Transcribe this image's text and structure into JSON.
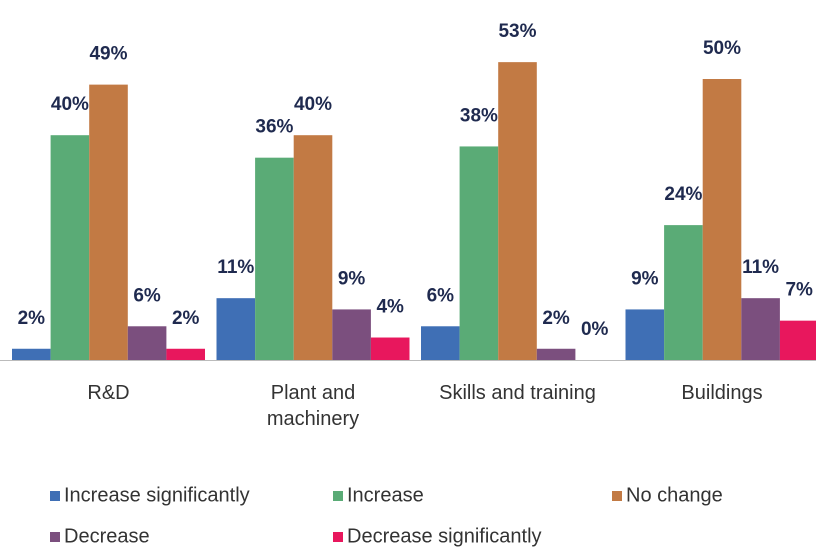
{
  "chart_data": {
    "type": "bar",
    "categories": [
      "R&D",
      "Plant and machinery",
      "Skills and training",
      "Buildings"
    ],
    "series": [
      {
        "name": "Increase significantly",
        "color": "#3f6fb5",
        "values": [
          2,
          11,
          6,
          9
        ],
        "value_labels": [
          "2%",
          "11%",
          "6%",
          "9%"
        ]
      },
      {
        "name": "Increase",
        "color": "#5aab76",
        "values": [
          40,
          36,
          38,
          24
        ],
        "value_labels": [
          "40%",
          "36%",
          "38%",
          "24%"
        ]
      },
      {
        "name": "No change",
        "color": "#c27a44",
        "values": [
          49,
          40,
          53,
          50
        ],
        "value_labels": [
          "49%",
          "40%",
          "53%",
          "50%"
        ]
      },
      {
        "name": "Decrease",
        "color": "#7b4f7e",
        "values": [
          6,
          9,
          2,
          11
        ],
        "value_labels": [
          "6%",
          "9%",
          "2%",
          "11%"
        ]
      },
      {
        "name": "Decrease significantly",
        "color": "#e8175d",
        "values": [
          2,
          4,
          0,
          7
        ],
        "value_labels": [
          "2%",
          "4%",
          "0%",
          "7%"
        ]
      }
    ]
  }
}
